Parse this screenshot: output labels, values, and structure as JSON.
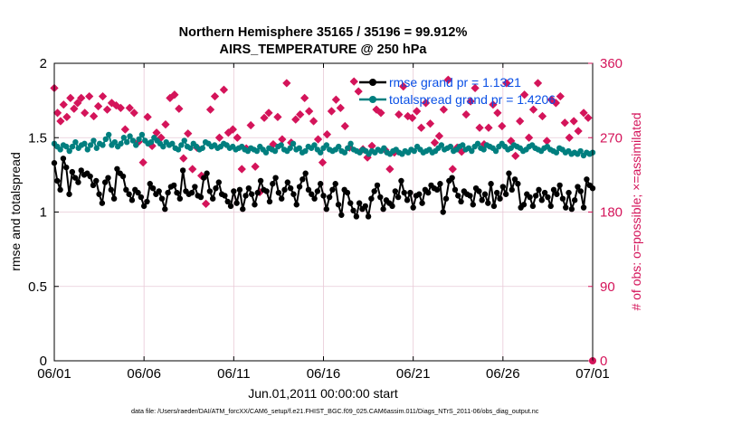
{
  "chart_data": {
    "type": "line",
    "title_lines": [
      "Northern Hemisphere 35165 / 35196 = 99.912%",
      "AIRS_TEMPERATURE @ 250 hPa"
    ],
    "xlabel": "Jun.01,2011 00:00:00 start",
    "ylabel_left": "rmse and totalspread",
    "ylabel_right": "# of obs: o=possible; ×=assimilated",
    "x_tick_labels": [
      "06/01",
      "06/06",
      "06/11",
      "06/16",
      "06/21",
      "06/26",
      "07/01"
    ],
    "x_range_days": [
      0,
      30
    ],
    "ylim_left": [
      0,
      2
    ],
    "yticks_left": [
      "0",
      "0.5",
      "1",
      "1.5",
      "2"
    ],
    "ylim_right": [
      0,
      360
    ],
    "yticks_right": [
      "0",
      "90",
      "180",
      "270",
      "360"
    ],
    "grid": true,
    "legend_position": "top-right",
    "footnote": "data file: /Users/raeder/DAI/ATM_forcXX/CAM6_setup/f.e21.FHIST_BGC.f09_025.CAM6assim.011/Diags_NTrS_2011-06/obs_diag_output.nc",
    "colors": {
      "rmse": "#000000",
      "spread": "#007f7f",
      "obs": "#d4145a",
      "right_axis": "#d4145a",
      "legend_text": "#0a50e6",
      "grid": "#e8c9d6"
    },
    "series": [
      {
        "name": "rmse grand pr = 1.1321",
        "axis": "left",
        "values": [
          1.33,
          1.21,
          1.15,
          1.36,
          1.3,
          1.12,
          1.27,
          1.23,
          1.2,
          1.28,
          1.25,
          1.26,
          1.24,
          1.18,
          1.21,
          1.12,
          1.06,
          1.2,
          1.23,
          1.15,
          1.09,
          1.29,
          1.26,
          1.24,
          1.15,
          1.12,
          1.08,
          1.15,
          1.13,
          1.1,
          1.04,
          1.07,
          1.19,
          1.16,
          1.12,
          1.14,
          1.09,
          1.02,
          1.13,
          1.17,
          1.18,
          1.13,
          1.09,
          1.28,
          1.14,
          1.12,
          1.13,
          1.17,
          1.11,
          1.1,
          1.23,
          1.26,
          1.14,
          1.09,
          1.16,
          1.2,
          1.12,
          1.11,
          1.07,
          1.04,
          1.14,
          1.06,
          1.15,
          1.02,
          1.11,
          1.16,
          1.12,
          1.05,
          1.13,
          1.21,
          1.15,
          1.14,
          1.07,
          1.19,
          1.23,
          1.13,
          1.09,
          1.15,
          1.2,
          1.16,
          1.12,
          1.05,
          1.17,
          1.22,
          1.26,
          1.15,
          1.12,
          1.09,
          1.14,
          1.19,
          1.11,
          1.02,
          1.1,
          1.15,
          1.19,
          1.05,
          0.98,
          1.15,
          1.13,
          1.06,
          1.01,
          0.97,
          1.06,
          1.02,
          1.04,
          0.97,
          1.09,
          1.14,
          1.18,
          1.1,
          1.02,
          1.08,
          1.06,
          1.04,
          1.14,
          1.1,
          1.21,
          1.13,
          1.08,
          1.13,
          1.03,
          1.11,
          1.12,
          1.06,
          1.15,
          1.13,
          1.18,
          1.16,
          1.15,
          1.19,
          1.0,
          1.09,
          1.21,
          1.23,
          1.15,
          1.11,
          1.07,
          1.14,
          1.12,
          1.11,
          1.05,
          1.16,
          1.14,
          1.08,
          1.12,
          1.06,
          1.19,
          1.04,
          1.13,
          1.09,
          1.17,
          1.12,
          1.26,
          1.15,
          1.22,
          1.19,
          1.03,
          1.05,
          1.12,
          1.1,
          1.04,
          1.11,
          1.15,
          1.08,
          1.13,
          1.1,
          1.04,
          1.15,
          1.12,
          1.18,
          1.09,
          1.03,
          1.13,
          1.02,
          1.08,
          1.17,
          1.14,
          1.03,
          1.22,
          1.18,
          1.16
        ]
      },
      {
        "name": "totalspread grand pr = 1.4206",
        "axis": "left",
        "values": [
          1.46,
          1.44,
          1.42,
          1.45,
          1.44,
          1.41,
          1.44,
          1.47,
          1.43,
          1.45,
          1.46,
          1.42,
          1.45,
          1.48,
          1.43,
          1.46,
          1.45,
          1.49,
          1.52,
          1.45,
          1.47,
          1.44,
          1.46,
          1.5,
          1.47,
          1.51,
          1.48,
          1.45,
          1.49,
          1.52,
          1.48,
          1.46,
          1.47,
          1.5,
          1.48,
          1.46,
          1.44,
          1.47,
          1.45,
          1.46,
          1.43,
          1.42,
          1.45,
          1.48,
          1.44,
          1.43,
          1.46,
          1.44,
          1.42,
          1.43,
          1.47,
          1.46,
          1.44,
          1.45,
          1.43,
          1.44,
          1.46,
          1.45,
          1.43,
          1.44,
          1.42,
          1.43,
          1.44,
          1.42,
          1.41,
          1.43,
          1.42,
          1.41,
          1.44,
          1.42,
          1.4,
          1.43,
          1.42,
          1.41,
          1.44,
          1.45,
          1.42,
          1.41,
          1.43,
          1.46,
          1.42,
          1.43,
          1.4,
          1.41,
          1.44,
          1.43,
          1.45,
          1.42,
          1.4,
          1.43,
          1.45,
          1.42,
          1.41,
          1.42,
          1.44,
          1.41,
          1.4,
          1.43,
          1.46,
          1.42,
          1.41,
          1.4,
          1.42,
          1.41,
          1.39,
          1.41,
          1.4,
          1.42,
          1.41,
          1.43,
          1.4,
          1.39,
          1.41,
          1.42,
          1.4,
          1.39,
          1.41,
          1.4,
          1.42,
          1.41,
          1.44,
          1.42,
          1.4,
          1.41,
          1.42,
          1.4,
          1.41,
          1.43,
          1.45,
          1.42,
          1.43,
          1.44,
          1.41,
          1.42,
          1.44,
          1.45,
          1.42,
          1.43,
          1.41,
          1.44,
          1.46,
          1.43,
          1.42,
          1.45,
          1.44,
          1.43,
          1.41,
          1.44,
          1.46,
          1.44,
          1.42,
          1.43,
          1.45,
          1.44,
          1.43,
          1.41,
          1.42,
          1.44,
          1.45,
          1.43,
          1.42,
          1.41,
          1.43,
          1.44,
          1.42,
          1.41,
          1.4,
          1.43,
          1.42,
          1.4,
          1.41,
          1.39,
          1.4,
          1.39,
          1.41,
          1.38,
          1.4,
          1.39,
          1.4
        ]
      },
      {
        "name": "# of obs assimilated",
        "axis": "right",
        "style": "markers-only",
        "x_days": [
          0.0,
          0.18,
          0.35,
          0.52,
          0.7,
          0.9,
          1.1,
          1.3,
          1.5,
          1.7,
          1.95,
          2.2,
          2.45,
          2.7,
          2.95,
          3.2,
          3.45,
          3.7,
          3.95,
          4.2,
          4.45,
          4.7,
          4.95,
          5.2,
          5.45,
          5.7,
          5.95,
          6.2,
          6.45,
          6.7,
          6.95,
          7.2,
          7.45,
          7.7,
          7.95,
          8.2,
          8.45,
          8.7,
          8.95,
          9.2,
          9.45,
          9.7,
          9.95,
          10.2,
          10.45,
          10.7,
          10.95,
          11.2,
          11.45,
          11.7,
          11.95,
          12.2,
          12.45,
          12.7,
          12.95,
          13.2,
          13.45,
          13.7,
          13.95,
          14.2,
          14.45,
          14.7,
          14.95,
          15.2,
          15.45,
          15.7,
          15.95,
          16.2,
          16.45,
          16.7,
          16.95,
          17.2,
          17.45,
          17.7,
          17.95,
          18.2,
          18.45,
          18.7,
          18.95,
          19.2,
          19.45,
          19.7,
          19.95,
          20.2,
          20.45,
          20.7,
          20.95,
          21.2,
          21.45,
          21.7,
          21.95,
          22.2,
          22.45,
          22.7,
          22.95,
          23.2,
          23.45,
          23.7,
          23.95,
          24.2,
          24.45,
          24.7,
          24.95,
          25.2,
          25.45,
          25.7,
          25.95,
          26.2,
          26.45,
          26.7,
          26.95,
          27.2,
          27.45,
          27.7,
          27.95,
          28.2,
          28.45,
          28.7,
          28.95,
          29.2,
          29.5,
          29.75
        ],
        "values": [
          330,
          300,
          290,
          310,
          295,
          318,
          305,
          312,
          318,
          300,
          320,
          296,
          308,
          320,
          304,
          312,
          309,
          306,
          280,
          306,
          300,
          265,
          240,
          295,
          260,
          276,
          270,
          286,
          318,
          322,
          305,
          245,
          275,
          232,
          258,
          224,
          190,
          304,
          320,
          270,
          328,
          276,
          280,
          270,
          232,
          257,
          285,
          235,
          204,
          294,
          300,
          262,
          295,
          268,
          336,
          264,
          292,
          298,
          318,
          302,
          290,
          268,
          240,
          274,
          302,
          316,
          306,
          284,
          258,
          338,
          326,
          256,
          246,
          260,
          304,
          300,
          255,
          232,
          252,
          298,
          332,
          296,
          294,
          302,
          282,
          312,
          287,
          264,
          272,
          304,
          340,
          232,
          258,
          253,
          298,
          314,
          330,
          282,
          262,
          282,
          310,
          300,
          284,
          336,
          266,
          248,
          290,
          322,
          270,
          304,
          336,
          296,
          266,
          316,
          312,
          320,
          288,
          270,
          290,
          278,
          300,
          294
        ]
      }
    ]
  }
}
